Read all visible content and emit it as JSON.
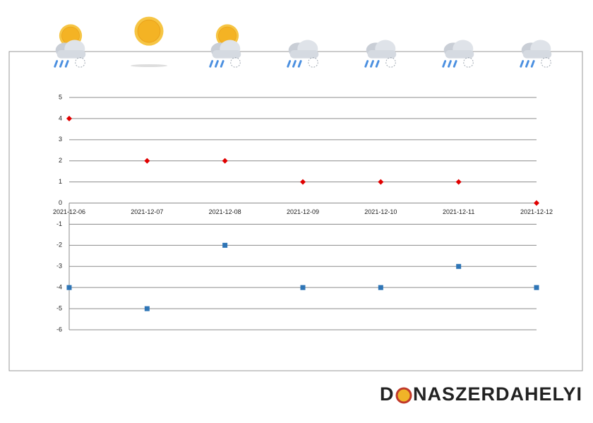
{
  "chart_data": {
    "type": "scatter",
    "categories": [
      "2021-12-06",
      "2021-12-07",
      "2021-12-08",
      "2021-12-09",
      "2021-12-10",
      "2021-12-11",
      "2021-12-12"
    ],
    "series": [
      {
        "color": "#e00000",
        "marker": "diamond",
        "values": [
          4,
          2,
          2,
          1,
          1,
          1,
          0
        ]
      },
      {
        "color": "#2e75b6",
        "marker": "square",
        "values": [
          -4,
          -5,
          -2,
          -4,
          -4,
          -3,
          -4
        ]
      }
    ],
    "ylim": [
      -6,
      5
    ],
    "yticks": [
      -6,
      -5,
      -4,
      -3,
      -2,
      -1,
      0,
      1,
      2,
      3,
      4,
      5
    ],
    "grid": true
  },
  "logo": {
    "first": "D",
    "rest": "NASZERDAHELYI"
  }
}
